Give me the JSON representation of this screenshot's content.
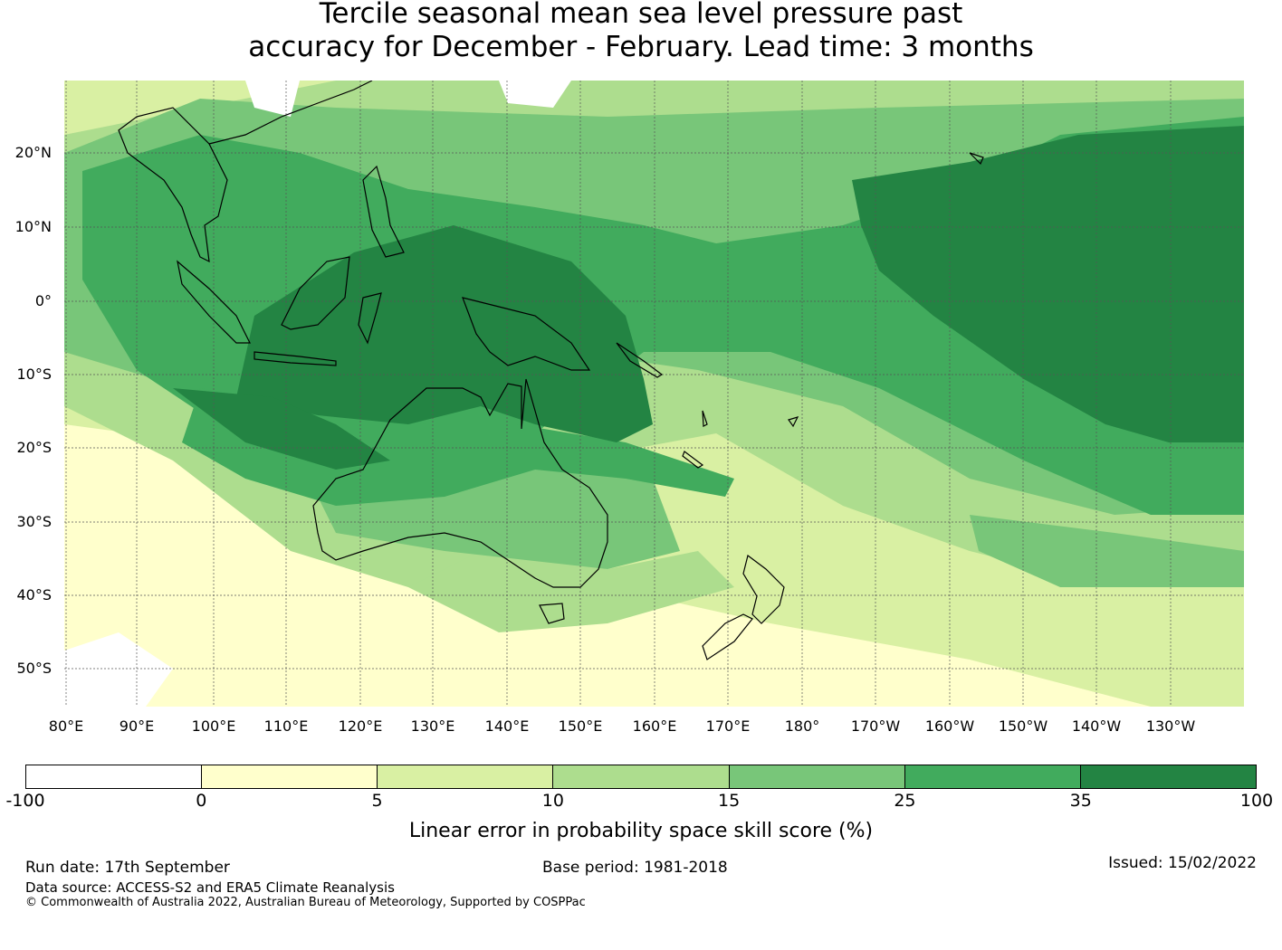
{
  "title": {
    "line1": "Tercile seasonal mean sea level pressure past",
    "line2": "accuracy for December - February. Lead time: 3 months"
  },
  "map": {
    "lat_labels": [
      "20°N",
      "10°N",
      "0°",
      "10°S",
      "20°S",
      "30°S",
      "40°S",
      "50°S"
    ],
    "lon_labels": [
      "80°E",
      "90°E",
      "100°E",
      "110°E",
      "120°E",
      "130°E",
      "140°E",
      "150°E",
      "160°E",
      "170°E",
      "180°",
      "170°W",
      "160°W",
      "150°W",
      "140°W",
      "130°W"
    ],
    "skill_classes": [
      "#ffffff",
      "#ffffcc",
      "#d9f0a3",
      "#addd8e",
      "#78c679",
      "#41ab5d",
      "#238443"
    ]
  },
  "colorbar": {
    "ticks": [
      "-100",
      "0",
      "5",
      "10",
      "15",
      "25",
      "35",
      "100"
    ],
    "colors": [
      "#ffffff",
      "#ffffcc",
      "#d9f0a3",
      "#addd8e",
      "#78c679",
      "#41ab5d",
      "#238443"
    ],
    "label": "Linear error in probability space skill score (%)"
  },
  "footer": {
    "run_date": "Run date: 17th September",
    "base_period": "Base period: 1981-2018",
    "issued": "Issued: 15/02/2022",
    "data_source": "Data source: ACCESS-S2 and ERA5 Climate Reanalysis",
    "copyright": "© Commonwealth of Australia 2022, Australian Bureau of Meteorology, Supported by COSPPac"
  }
}
